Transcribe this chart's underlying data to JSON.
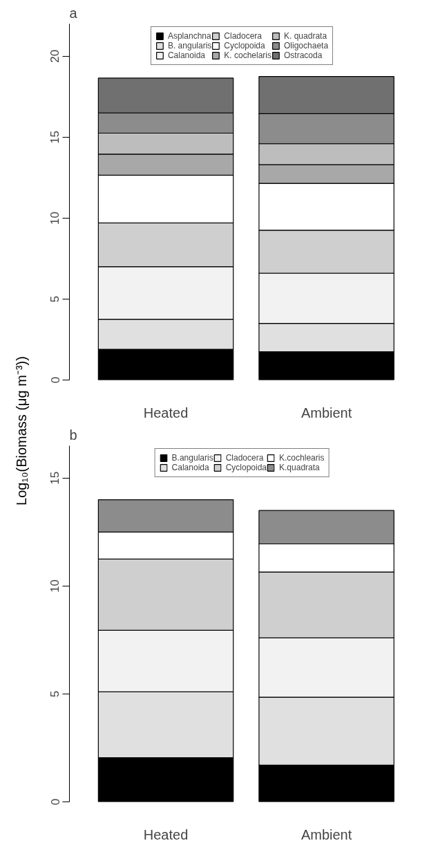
{
  "chart_data": [
    {
      "type": "bar",
      "title": "a",
      "ylabel": "Log₁₀(Biomass (μg m⁻³))",
      "categories": [
        "Heated",
        "Ambient"
      ],
      "stacked": true,
      "ylim": [
        0,
        22
      ],
      "yticks": [
        0,
        5,
        10,
        15,
        20
      ],
      "legend": "top",
      "grid": false,
      "series": [
        {
          "name": "Asplanchna",
          "color": "#000000",
          "values": [
            1.9,
            1.75
          ]
        },
        {
          "name": "B. angularis",
          "color": "#e0e0e0",
          "values": [
            1.85,
            1.75
          ]
        },
        {
          "name": "Calanoida",
          "color": "#f2f2f2",
          "values": [
            3.25,
            3.1
          ]
        },
        {
          "name": "Cladocera",
          "color": "#cfcfcf",
          "values": [
            2.7,
            2.65
          ]
        },
        {
          "name": "Cyclopoida",
          "color": "#ffffff",
          "values": [
            2.95,
            2.9
          ]
        },
        {
          "name": "K. cochelaris",
          "color": "#a8a8a8",
          "values": [
            1.3,
            1.15
          ]
        },
        {
          "name": "K. quadrata",
          "color": "#bdbdbd",
          "values": [
            1.3,
            1.3
          ]
        },
        {
          "name": "Oligochaeta",
          "color": "#8c8c8c",
          "values": [
            1.25,
            1.85
          ]
        },
        {
          "name": "Ostracoda",
          "color": "#707070",
          "values": [
            2.15,
            2.3
          ]
        }
      ]
    },
    {
      "type": "bar",
      "title": "b",
      "categories": [
        "Heated",
        "Ambient"
      ],
      "stacked": true,
      "ylim": [
        0,
        16.5
      ],
      "yticks": [
        0,
        5,
        10,
        15
      ],
      "legend": "top",
      "grid": false,
      "series": [
        {
          "name": "B.angularis",
          "color": "#000000",
          "values": [
            2.05,
            1.7
          ]
        },
        {
          "name": "Calanoida",
          "color": "#e0e0e0",
          "values": [
            3.05,
            3.15
          ]
        },
        {
          "name": "Cladocera",
          "color": "#f2f2f2",
          "values": [
            2.85,
            2.75
          ]
        },
        {
          "name": "Cyclopoida",
          "color": "#cfcfcf",
          "values": [
            3.3,
            3.05
          ]
        },
        {
          "name": "K.cochlearis",
          "color": "#ffffff",
          "values": [
            1.25,
            1.3
          ]
        },
        {
          "name": "K.quadrata",
          "color": "#8c8c8c",
          "values": [
            1.5,
            1.55
          ]
        }
      ]
    }
  ]
}
